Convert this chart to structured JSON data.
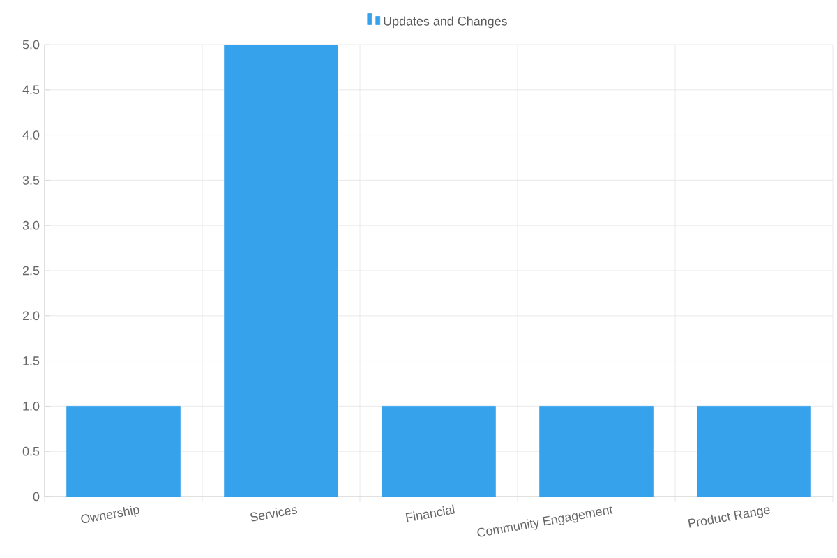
{
  "chart_data": {
    "type": "bar",
    "categories": [
      "Ownership",
      "Services",
      "Financial",
      "Community Engagement",
      "Product Range"
    ],
    "series": [
      {
        "name": "Updates and Changes",
        "color": "#36a2eb",
        "values": [
          1,
          5,
          1,
          1,
          1
        ]
      }
    ],
    "ylim": [
      0,
      5
    ],
    "yticks": [
      0,
      {
        "value": 0.5,
        "label": "0.5"
      },
      {
        "value": 1,
        "label": "1.0"
      },
      {
        "value": 1.5,
        "label": "1.5"
      },
      {
        "value": 2,
        "label": "2.0"
      },
      {
        "value": 2.5,
        "label": "2.5"
      },
      {
        "value": 3,
        "label": "3.0"
      },
      {
        "value": 3.5,
        "label": "3.5"
      },
      {
        "value": 4,
        "label": "4.0"
      },
      {
        "value": 4.5,
        "label": "4.5"
      },
      {
        "value": 5,
        "label": "5.0"
      }
    ],
    "grid": true,
    "legend": "top"
  }
}
